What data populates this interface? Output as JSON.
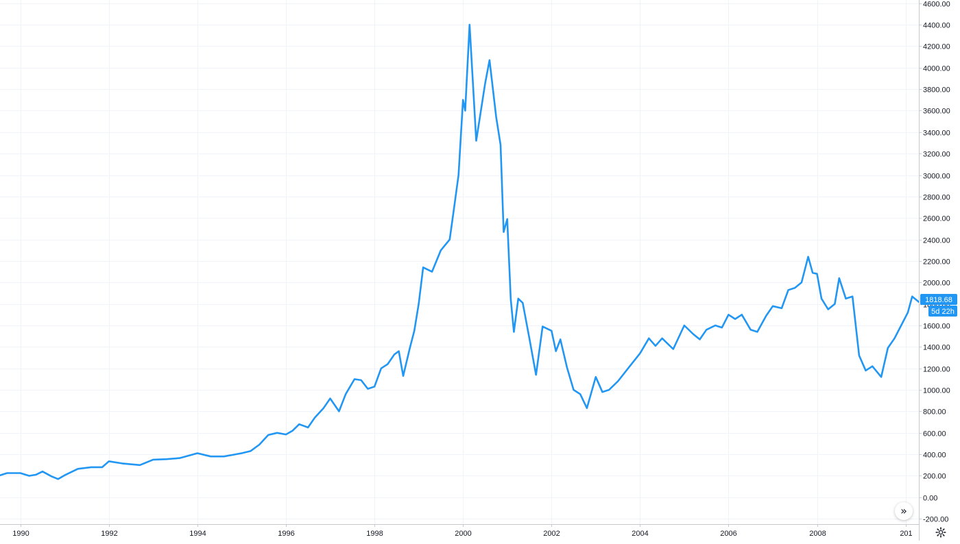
{
  "chart_data": {
    "type": "line",
    "title": "",
    "xlabel": "",
    "ylabel": "",
    "x_tick_labels": [
      "1990",
      "1992",
      "1994",
      "1996",
      "1998",
      "2000",
      "2002",
      "2004",
      "2006",
      "2008",
      "201"
    ],
    "y_tick_labels": [
      "-200.00",
      "0.00",
      "200.00",
      "400.00",
      "600.00",
      "800.00",
      "1000.00",
      "1200.00",
      "1400.00",
      "1600.00",
      "1800.00",
      "2000.00",
      "2200.00",
      "2400.00",
      "2600.00",
      "2800.00",
      "3000.00",
      "3200.00",
      "3400.00",
      "3600.00",
      "3800.00",
      "4000.00",
      "4200.00",
      "4400.00",
      "4600.00"
    ],
    "xlim": [
      1989.54,
      2010.3
    ],
    "ylim": [
      -250,
      4630
    ],
    "grid": true,
    "series": [
      {
        "color": "#2196f3",
        "x": [
          1989.54,
          1989.7,
          1990.0,
          1990.2,
          1990.35,
          1990.5,
          1990.7,
          1990.85,
          1991.0,
          1991.3,
          1991.6,
          1991.85,
          1992.0,
          1992.3,
          1992.7,
          1993.0,
          1993.3,
          1993.6,
          1994.0,
          1994.3,
          1994.6,
          1994.8,
          1995.0,
          1995.2,
          1995.4,
          1995.6,
          1995.8,
          1996.0,
          1996.15,
          1996.3,
          1996.5,
          1996.65,
          1996.85,
          1997.0,
          1997.2,
          1997.35,
          1997.55,
          1997.7,
          1997.85,
          1998.0,
          1998.15,
          1998.3,
          1998.45,
          1998.55,
          1998.65,
          1998.8,
          1998.9,
          1999.0,
          1999.1,
          1999.3,
          1999.5,
          1999.7,
          1999.8,
          1999.9,
          2000.0,
          2000.05,
          2000.15,
          2000.3,
          2000.5,
          2000.6,
          2000.75,
          2000.85,
          2000.92,
          2001.0,
          2001.08,
          2001.15,
          2001.25,
          2001.35,
          2001.5,
          2001.65,
          2001.8,
          2002.0,
          2002.1,
          2002.2,
          2002.35,
          2002.5,
          2002.65,
          2002.8,
          2003.0,
          2003.15,
          2003.3,
          2003.5,
          2003.75,
          2004.0,
          2004.2,
          2004.35,
          2004.5,
          2004.75,
          2005.0,
          2005.2,
          2005.35,
          2005.5,
          2005.7,
          2005.85,
          2006.0,
          2006.15,
          2006.3,
          2006.5,
          2006.65,
          2006.85,
          2007.0,
          2007.2,
          2007.35,
          2007.5,
          2007.65,
          2007.8,
          2007.9,
          2008.0,
          2008.1,
          2008.25,
          2008.4,
          2008.5,
          2008.65,
          2008.8,
          2008.95,
          2009.1,
          2009.25,
          2009.45,
          2009.6,
          2009.75,
          2009.9,
          2010.05,
          2010.15,
          2010.3
        ],
        "y": [
          205,
          225,
          225,
          200,
          210,
          240,
          195,
          170,
          205,
          265,
          280,
          280,
          335,
          315,
          300,
          350,
          355,
          365,
          410,
          380,
          380,
          395,
          410,
          430,
          490,
          580,
          600,
          585,
          620,
          680,
          650,
          740,
          830,
          920,
          800,
          960,
          1100,
          1090,
          1010,
          1030,
          1200,
          1240,
          1330,
          1360,
          1130,
          1390,
          1550,
          1800,
          2140,
          2100,
          2300,
          2400,
          2700,
          3000,
          3700,
          3600,
          4400,
          3320,
          3850,
          4070,
          3540,
          3280,
          2470,
          2590,
          1840,
          1540,
          1850,
          1810,
          1480,
          1140,
          1590,
          1550,
          1360,
          1470,
          1210,
          1000,
          960,
          830,
          1120,
          980,
          1000,
          1080,
          1210,
          1340,
          1480,
          1410,
          1480,
          1380,
          1600,
          1520,
          1470,
          1560,
          1600,
          1580,
          1700,
          1660,
          1700,
          1560,
          1540,
          1690,
          1780,
          1760,
          1930,
          1950,
          2000,
          2240,
          2090,
          2080,
          1850,
          1750,
          1800,
          2040,
          1850,
          1870,
          1320,
          1180,
          1220,
          1120,
          1390,
          1480,
          1600,
          1720,
          1870,
          1818.68
        ]
      }
    ],
    "price_label": "1818.68",
    "countdown_label": "5d 22h",
    "accent_color": "#2196f3"
  },
  "controls": {
    "scroll_icon": "double-chevron-right-icon",
    "scroll_glyph": "»",
    "settings_icon": "gear-icon"
  }
}
